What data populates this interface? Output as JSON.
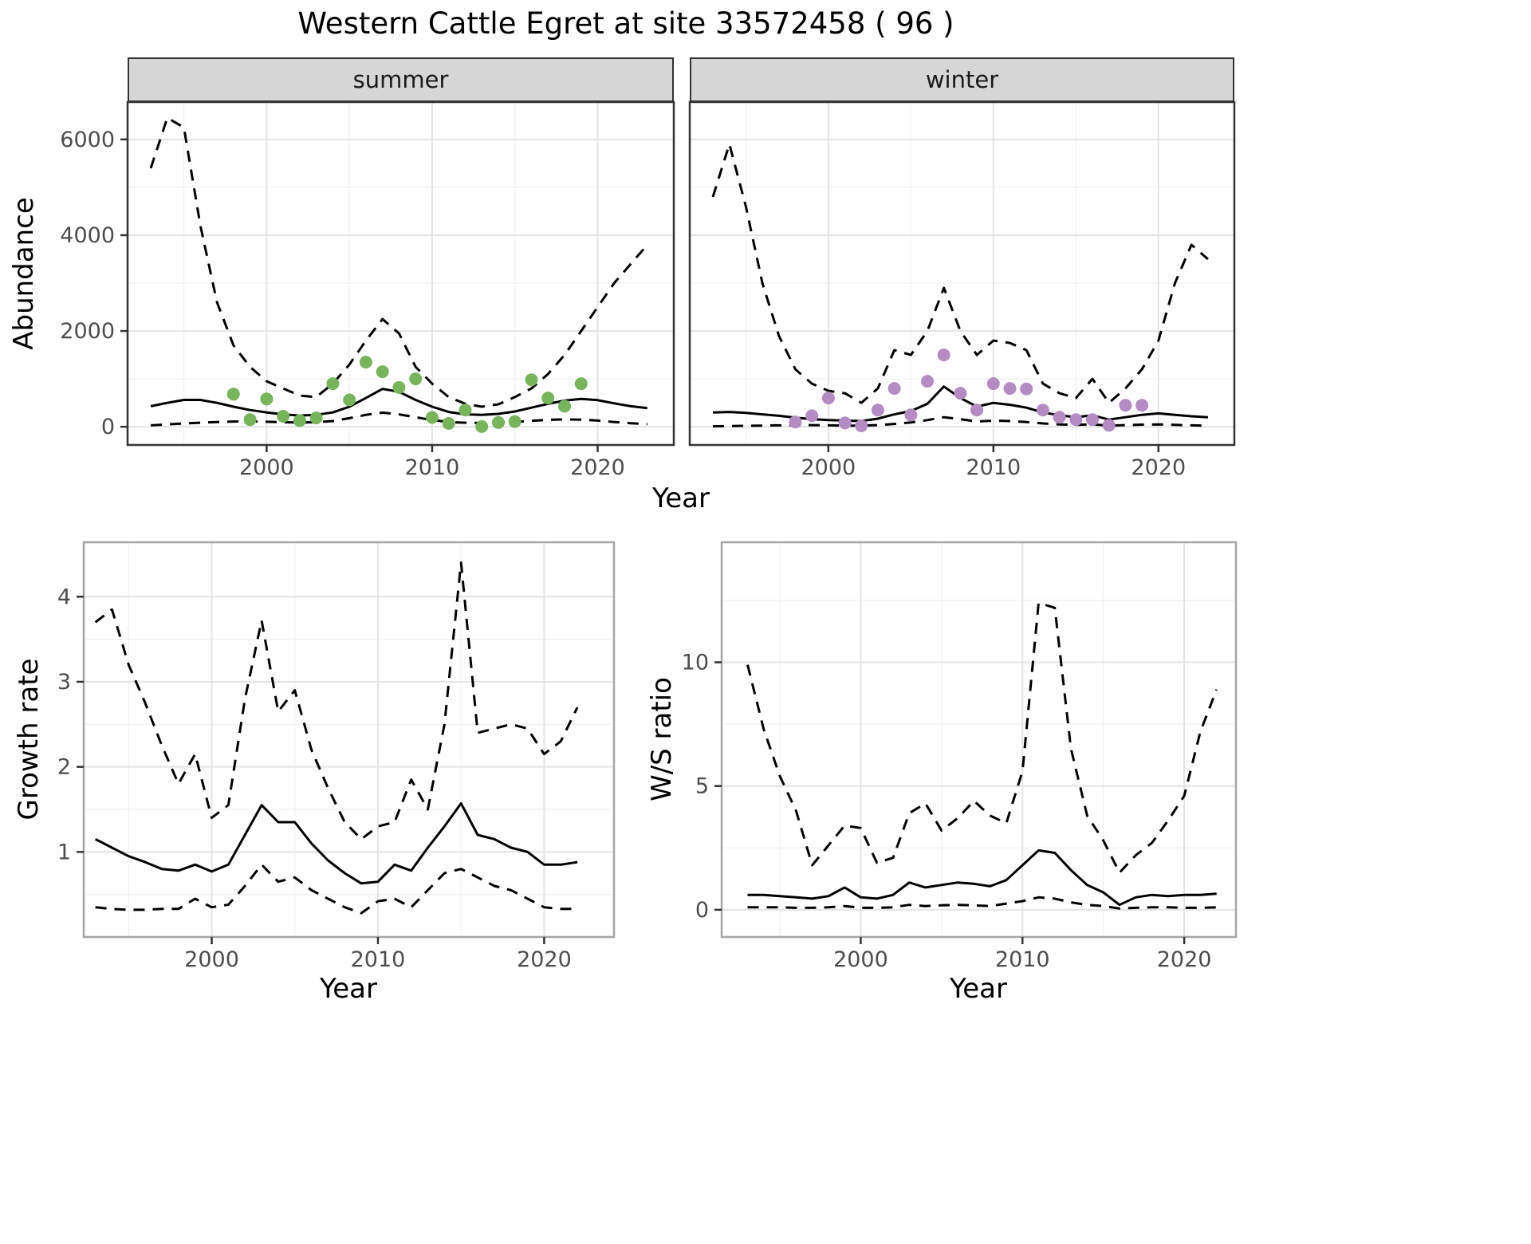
{
  "title": "Western Cattle Egret at site 33572458 ( 96 )",
  "style": {
    "background": "#FFFFFF",
    "strip_bg": "#D6D6D6",
    "grid_major": "#E4E4E4",
    "grid_minor": "#F2F2F2",
    "line_color": "#000000",
    "tick_color": "#333333",
    "tick_label_color": "#4D4D4D",
    "summer_point_color": "#77B45C",
    "winter_point_color": "#B48BC2"
  },
  "chart_data": [
    {
      "id": "abundance_summer",
      "type": "line",
      "facet": "summer",
      "xlabel": "Year",
      "ylabel": "Abundance",
      "xlim": [
        1991.6,
        2024.6
      ],
      "ylim": [
        -380,
        6780
      ],
      "xticks": [
        2000,
        2010,
        2020
      ],
      "xtick_labels": [
        "2000",
        "2010",
        "2020"
      ],
      "xticks_minor": [
        1995,
        2005,
        2015
      ],
      "yticks": [
        0,
        2000,
        4000,
        6000
      ],
      "ytick_labels": [
        "0",
        "2000",
        "4000",
        "6000"
      ],
      "yticks_minor": [
        1000,
        3000,
        5000
      ],
      "show_y_labels": true,
      "border_color": "#333333",
      "x": [
        1993,
        1994,
        1995,
        1996,
        1997,
        1998,
        1999,
        2000,
        2001,
        2002,
        2003,
        2004,
        2005,
        2006,
        2007,
        2008,
        2009,
        2010,
        2011,
        2012,
        2013,
        2014,
        2015,
        2016,
        2017,
        2018,
        2019,
        2020,
        2021,
        2022,
        2023
      ],
      "series": [
        {
          "name": "upper-ci",
          "style": "dashed",
          "values": [
            5400,
            6450,
            6250,
            4200,
            2600,
            1700,
            1250,
            950,
            800,
            650,
            620,
            900,
            1300,
            1800,
            2250,
            1950,
            1250,
            900,
            620,
            480,
            420,
            470,
            620,
            800,
            1100,
            1500,
            2000,
            2500,
            3000,
            3400,
            3800
          ]
        },
        {
          "name": "median",
          "style": "solid",
          "values": [
            430,
            500,
            560,
            560,
            500,
            420,
            350,
            300,
            260,
            235,
            250,
            300,
            420,
            600,
            790,
            730,
            560,
            420,
            310,
            260,
            250,
            270,
            320,
            400,
            480,
            545,
            580,
            555,
            490,
            430,
            390
          ]
        },
        {
          "name": "lower-ci",
          "style": "dashed",
          "values": [
            30,
            50,
            70,
            85,
            100,
            110,
            115,
            105,
            95,
            90,
            95,
            120,
            180,
            250,
            295,
            260,
            200,
            140,
            100,
            85,
            80,
            85,
            100,
            125,
            145,
            155,
            150,
            130,
            100,
            75,
            55
          ]
        }
      ],
      "points": {
        "name": "summer-observation-point",
        "color": "#77B45C",
        "x": [
          1998,
          1999,
          2000,
          2001,
          2002,
          2003,
          2004,
          2005,
          2006,
          2007,
          2008,
          2009,
          2010,
          2011,
          2012,
          2013,
          2014,
          2015,
          2016,
          2017,
          2018,
          2019
        ],
        "y": [
          680,
          150,
          580,
          220,
          130,
          185,
          900,
          560,
          1350,
          1150,
          820,
          1000,
          195,
          70,
          350,
          5,
          90,
          110,
          980,
          600,
          430,
          900
        ]
      }
    },
    {
      "id": "abundance_winter",
      "type": "line",
      "facet": "winter",
      "xlabel": "Year",
      "ylabel": "Abundance",
      "xlim": [
        1991.6,
        2024.6
      ],
      "ylim": [
        -380,
        6780
      ],
      "xticks": [
        2000,
        2010,
        2020
      ],
      "xtick_labels": [
        "2000",
        "2010",
        "2020"
      ],
      "xticks_minor": [
        1995,
        2005,
        2015
      ],
      "yticks": [
        0,
        2000,
        4000,
        6000
      ],
      "ytick_labels": [
        "0",
        "2000",
        "4000",
        "6000"
      ],
      "yticks_minor": [
        1000,
        3000,
        5000
      ],
      "show_y_labels": false,
      "border_color": "#333333",
      "x": [
        1993,
        1994,
        1995,
        1996,
        1997,
        1998,
        1999,
        2000,
        2001,
        2002,
        2003,
        2004,
        2005,
        2006,
        2007,
        2008,
        2009,
        2010,
        2011,
        2012,
        2013,
        2014,
        2015,
        2016,
        2017,
        2018,
        2019,
        2020,
        2021,
        2022,
        2023
      ],
      "series": [
        {
          "name": "upper-ci",
          "style": "dashed",
          "values": [
            4800,
            5900,
            4600,
            3000,
            1900,
            1200,
            900,
            750,
            700,
            500,
            800,
            1600,
            1500,
            2000,
            2900,
            2000,
            1500,
            1800,
            1750,
            1600,
            900,
            700,
            600,
            1000,
            500,
            800,
            1200,
            1800,
            3000,
            3800,
            3500
          ]
        },
        {
          "name": "median",
          "style": "solid",
          "values": [
            300,
            310,
            290,
            260,
            230,
            190,
            160,
            140,
            130,
            120,
            170,
            260,
            330,
            480,
            840,
            600,
            420,
            500,
            460,
            400,
            300,
            240,
            200,
            240,
            150,
            200,
            250,
            280,
            250,
            220,
            200
          ]
        },
        {
          "name": "lower-ci",
          "style": "dashed",
          "values": [
            10,
            15,
            20,
            25,
            30,
            35,
            35,
            30,
            25,
            25,
            35,
            60,
            90,
            140,
            200,
            160,
            110,
            130,
            120,
            100,
            70,
            50,
            40,
            50,
            25,
            35,
            45,
            50,
            40,
            30,
            25
          ]
        }
      ],
      "points": {
        "name": "winter-observation-point",
        "color": "#B48BC2",
        "x": [
          1998,
          1999,
          2000,
          2001,
          2002,
          2003,
          2004,
          2005,
          2006,
          2007,
          2008,
          2009,
          2010,
          2011,
          2012,
          2013,
          2014,
          2015,
          2016,
          2017,
          2018,
          2019
        ],
        "y": [
          100,
          230,
          600,
          80,
          20,
          350,
          800,
          250,
          950,
          1500,
          700,
          350,
          900,
          800,
          790,
          350,
          200,
          150,
          150,
          30,
          450,
          450
        ]
      }
    },
    {
      "id": "growth_rate",
      "type": "line",
      "facet": "",
      "xlabel": "Year",
      "ylabel": "Growth rate",
      "xlim": [
        1992.3,
        2024.2
      ],
      "ylim": [
        0,
        4.64
      ],
      "xticks": [
        2000,
        2010,
        2020
      ],
      "xtick_labels": [
        "2000",
        "2010",
        "2020"
      ],
      "xticks_minor": [
        1995,
        2005,
        2015
      ],
      "yticks": [
        1,
        2,
        3,
        4
      ],
      "ytick_labels": [
        "1",
        "2",
        "3",
        "4"
      ],
      "yticks_minor": [
        0.5,
        1.5,
        2.5,
        3.5
      ],
      "show_y_labels": true,
      "border_color": "#A6A6A6",
      "x": [
        1993,
        1994,
        1995,
        1996,
        1997,
        1998,
        1999,
        2000,
        2001,
        2002,
        2003,
        2004,
        2005,
        2006,
        2007,
        2008,
        2009,
        2010,
        2011,
        2012,
        2013,
        2014,
        2015,
        2016,
        2017,
        2018,
        2019,
        2020,
        2021,
        2022
      ],
      "series": [
        {
          "name": "upper-ci",
          "style": "dashed",
          "values": [
            3.7,
            3.85,
            3.2,
            2.75,
            2.25,
            1.8,
            2.15,
            1.4,
            1.55,
            2.8,
            3.72,
            2.65,
            2.9,
            2.2,
            1.75,
            1.35,
            1.15,
            1.3,
            1.35,
            1.85,
            1.5,
            2.5,
            4.4,
            2.4,
            2.45,
            2.5,
            2.45,
            2.15,
            2.3,
            2.7
          ]
        },
        {
          "name": "median",
          "style": "solid",
          "values": [
            1.15,
            1.05,
            0.95,
            0.88,
            0.8,
            0.78,
            0.85,
            0.77,
            0.85,
            1.2,
            1.55,
            1.35,
            1.35,
            1.1,
            0.9,
            0.75,
            0.63,
            0.65,
            0.85,
            0.78,
            1.05,
            1.3,
            1.57,
            1.2,
            1.15,
            1.05,
            1.0,
            0.85,
            0.85,
            0.88
          ]
        },
        {
          "name": "lower-ci",
          "style": "dashed",
          "values": [
            0.35,
            0.33,
            0.32,
            0.32,
            0.33,
            0.33,
            0.45,
            0.35,
            0.38,
            0.6,
            0.85,
            0.65,
            0.7,
            0.55,
            0.45,
            0.35,
            0.28,
            0.42,
            0.45,
            0.35,
            0.55,
            0.75,
            0.8,
            0.7,
            0.6,
            0.55,
            0.45,
            0.35,
            0.33,
            0.33
          ]
        }
      ]
    },
    {
      "id": "ws_ratio",
      "type": "line",
      "facet": "",
      "xlabel": "Year",
      "ylabel": "W/S ratio",
      "xlim": [
        1991.4,
        2023.2
      ],
      "ylim": [
        -1.1,
        14.85
      ],
      "xticks": [
        2000,
        2010,
        2020
      ],
      "xtick_labels": [
        "2000",
        "2010",
        "2020"
      ],
      "xticks_minor": [
        1995,
        2005,
        2015
      ],
      "yticks": [
        0,
        5,
        10
      ],
      "ytick_labels": [
        "0",
        "5",
        "10"
      ],
      "yticks_minor": [
        2.5,
        7.5,
        12.5
      ],
      "show_y_labels": true,
      "border_color": "#A6A6A6",
      "x": [
        1993,
        1994,
        1995,
        1996,
        1997,
        1998,
        1999,
        2000,
        2001,
        2002,
        2003,
        2004,
        2005,
        2006,
        2007,
        2008,
        2009,
        2010,
        2011,
        2012,
        2013,
        2014,
        2015,
        2016,
        2017,
        2018,
        2019,
        2020,
        2021,
        2022
      ],
      "series": [
        {
          "name": "upper-ci",
          "style": "dashed",
          "values": [
            9.9,
            7.3,
            5.4,
            4.0,
            1.8,
            2.6,
            3.4,
            3.3,
            1.9,
            2.1,
            3.9,
            4.3,
            3.2,
            3.7,
            4.4,
            3.8,
            3.5,
            5.6,
            12.4,
            12.2,
            6.5,
            3.8,
            2.8,
            1.5,
            2.2,
            2.7,
            3.6,
            4.6,
            7.2,
            8.9
          ]
        },
        {
          "name": "median",
          "style": "solid",
          "values": [
            0.6,
            0.6,
            0.55,
            0.5,
            0.45,
            0.55,
            0.9,
            0.5,
            0.45,
            0.6,
            1.1,
            0.9,
            1.0,
            1.1,
            1.05,
            0.95,
            1.2,
            1.8,
            2.4,
            2.3,
            1.6,
            1.0,
            0.7,
            0.2,
            0.5,
            0.6,
            0.55,
            0.6,
            0.6,
            0.65
          ]
        },
        {
          "name": "lower-ci",
          "style": "dashed",
          "values": [
            0.1,
            0.1,
            0.1,
            0.08,
            0.08,
            0.1,
            0.15,
            0.08,
            0.08,
            0.1,
            0.2,
            0.15,
            0.18,
            0.2,
            0.18,
            0.15,
            0.25,
            0.35,
            0.5,
            0.45,
            0.3,
            0.2,
            0.15,
            0.05,
            0.08,
            0.1,
            0.1,
            0.08,
            0.08,
            0.1
          ]
        }
      ]
    }
  ]
}
